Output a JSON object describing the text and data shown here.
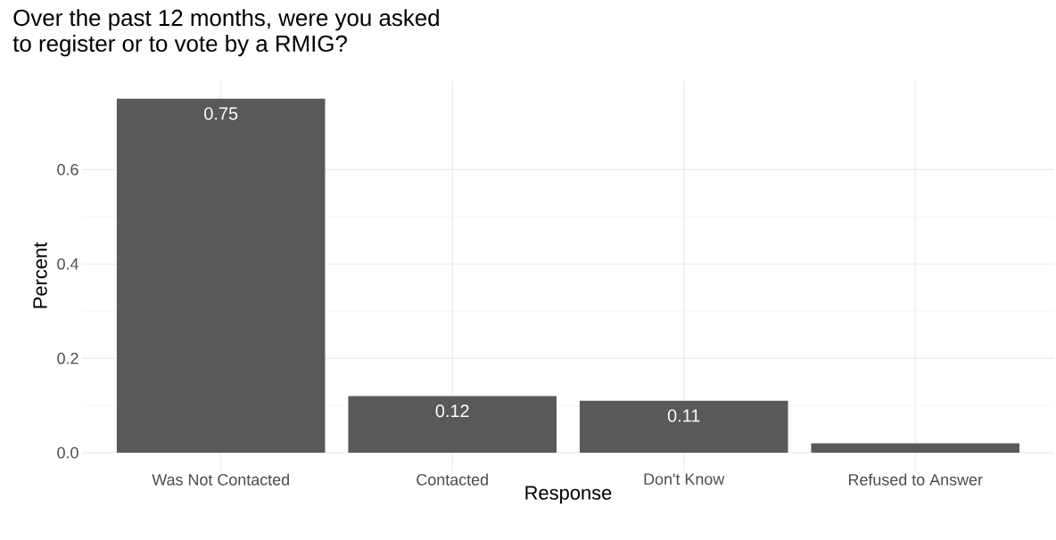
{
  "chart_data": {
    "type": "bar",
    "title": "Over the past 12 months, were you asked\nto register or to vote by a RMIG?",
    "xlabel": "Response",
    "ylabel": "Percent",
    "categories": [
      "Was Not Contacted",
      "Contacted",
      "Don't Know",
      "Refused to Answer"
    ],
    "values": [
      0.75,
      0.12,
      0.11,
      0.02
    ],
    "value_labels": [
      "0.75",
      "0.12",
      "0.11",
      null
    ],
    "color": "#595959",
    "ylim": [
      -0.0375,
      0.7875
    ],
    "yticks": [
      {
        "value": 0,
        "label": "0.0"
      },
      0.2,
      0.4,
      0.6
    ],
    "grid": true
  }
}
